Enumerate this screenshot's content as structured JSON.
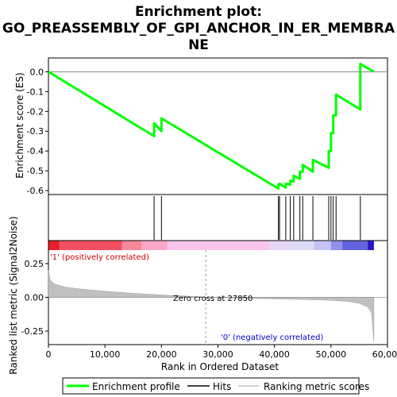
{
  "chart_data": {
    "type": "line",
    "title_lines": [
      "Enrichment plot:",
      "GO_PREASSEMBLY_OF_GPI_ANCHOR_IN_ER_MEMBRA",
      "NE"
    ],
    "top_panel": {
      "ylabel": "Enrichment score (ES)",
      "ylim": [
        -0.62,
        0.07
      ],
      "yticks": [
        "0.0",
        "-0.1",
        "-0.2",
        "-0.3",
        "-0.4",
        "-0.5",
        "-0.6"
      ],
      "ytick_values": [
        0.0,
        -0.1,
        -0.2,
        -0.3,
        -0.4,
        -0.5,
        -0.6
      ],
      "series": [
        {
          "name": "Enrichment profile",
          "color": "#00ff00",
          "x": [
            0,
            18700,
            18700,
            20000,
            20000,
            40700,
            40700,
            40900,
            40900,
            42000,
            42000,
            42800,
            42800,
            43400,
            43400,
            44500,
            44500,
            45000,
            45000,
            46800,
            46800,
            49600,
            49600,
            50000,
            50000,
            50400,
            50400,
            50900,
            50900,
            55200,
            55200,
            57600
          ],
          "y": [
            0.0,
            -0.325,
            -0.26,
            -0.3,
            -0.235,
            -0.59,
            -0.57,
            -0.57,
            -0.565,
            -0.585,
            -0.565,
            -0.57,
            -0.55,
            -0.555,
            -0.525,
            -0.54,
            -0.505,
            -0.505,
            -0.47,
            -0.505,
            -0.445,
            -0.485,
            -0.4,
            -0.4,
            -0.31,
            -0.31,
            -0.22,
            -0.22,
            -0.115,
            -0.19,
            0.04,
            0.0
          ]
        }
      ]
    },
    "hits": {
      "name": "Hits",
      "x": [
        18700,
        20000,
        40700,
        40900,
        42000,
        42800,
        43400,
        44500,
        45000,
        46800,
        49600,
        50000,
        50400,
        50900,
        55200
      ]
    },
    "bottom_panel": {
      "ylabel": "Ranked list metric (Signal2Noise)",
      "ylim": [
        -0.35,
        0.42
      ],
      "yticks": [
        "0.25",
        "0.00",
        "-0.25"
      ],
      "ytick_values": [
        0.25,
        0.0,
        -0.25
      ],
      "series_name": "Ranking metric scores",
      "profile_x": [
        0,
        300,
        1000,
        3000,
        6000,
        10000,
        15000,
        20000,
        25000,
        27850,
        32000,
        38000,
        44000,
        50000,
        53000,
        55000,
        56500,
        57200,
        57600
      ],
      "profile_y": [
        0.2,
        0.13,
        0.1,
        0.075,
        0.06,
        0.045,
        0.03,
        0.018,
        0.008,
        0.0,
        -0.005,
        -0.01,
        -0.015,
        -0.022,
        -0.03,
        -0.045,
        -0.07,
        -0.12,
        -0.33
      ],
      "zero_cross_text": "Zero cross at 27850",
      "zero_cross": 27850,
      "pos_label": "'1' (positively correlated)",
      "neg_label": "'0' (negatively correlated)"
    },
    "xaxis": {
      "xlabel": "Rank in Ordered Dataset",
      "xlim": [
        0,
        60000
      ],
      "xticks": [
        "0",
        "10,000",
        "20,000",
        "30,000",
        "40,000",
        "50,000",
        "60,000"
      ],
      "xtick_values": [
        0,
        10000,
        20000,
        30000,
        40000,
        50000,
        60000
      ],
      "max_rank": 57600
    },
    "colorbar_segments": [
      {
        "end": 2000,
        "color": "#e8202a"
      },
      {
        "end": 13000,
        "color": "#f25060"
      },
      {
        "end": 16500,
        "color": "#f7889a"
      },
      {
        "end": 21000,
        "color": "#f9a8c8"
      },
      {
        "end": 39000,
        "color": "#f9c4ec"
      },
      {
        "end": 43000,
        "color": "#e6d8f6"
      },
      {
        "end": 47000,
        "color": "#dcdcf8"
      },
      {
        "end": 50000,
        "color": "#c4c4f4"
      },
      {
        "end": 52000,
        "color": "#9090ec"
      },
      {
        "end": 56500,
        "color": "#6464e0"
      },
      {
        "end": 57600,
        "color": "#2a18c8"
      }
    ],
    "legend": [
      {
        "label": "Enrichment profile",
        "color": "#00ff00"
      },
      {
        "label": "Hits",
        "color": "#000000"
      },
      {
        "label": "Ranking metric scores",
        "color": "#c0c0c0"
      }
    ]
  }
}
